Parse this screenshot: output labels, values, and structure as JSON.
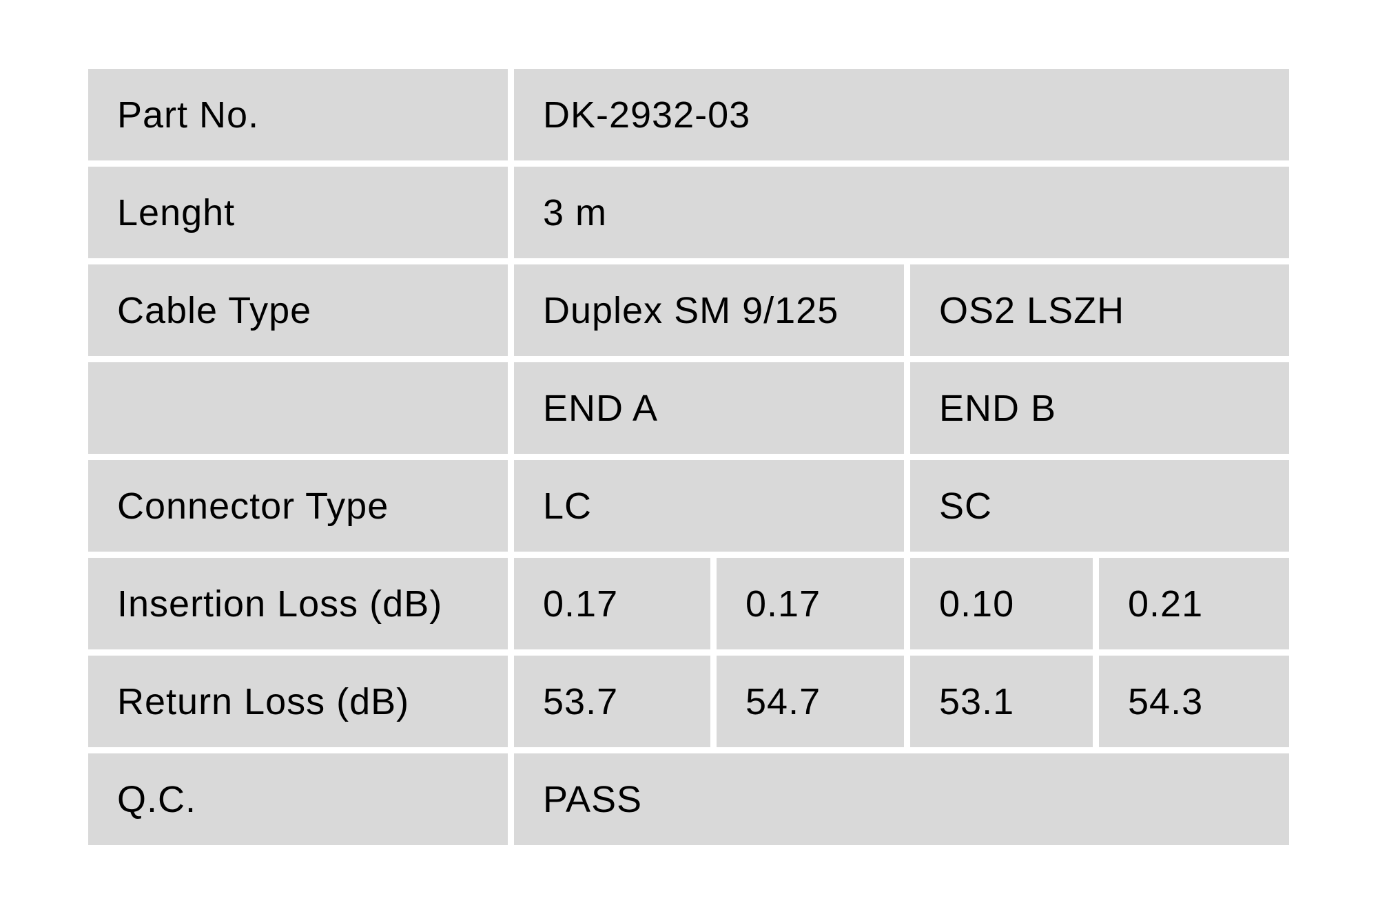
{
  "page": {
    "background_color": "#ffffff"
  },
  "table": {
    "cell_bg": "#d9d9d9",
    "text_color": "#000000",
    "rows": [
      {
        "key": "part-no",
        "label": "Part No.",
        "cells": [
          {
            "text": "DK-2932-03",
            "cols": 4
          }
        ]
      },
      {
        "key": "length",
        "label": "Lenght",
        "cells": [
          {
            "text": "3 m",
            "cols": 4
          }
        ]
      },
      {
        "key": "cable-type",
        "label": "Cable Type",
        "cells": [
          {
            "text": "Duplex SM 9/125",
            "cols": 2
          },
          {
            "text": "OS2 LSZH",
            "cols": 2
          }
        ]
      },
      {
        "key": "end-header",
        "label": "",
        "cells": [
          {
            "text": "END A",
            "cols": 2
          },
          {
            "text": "END B",
            "cols": 2
          }
        ]
      },
      {
        "key": "connector-type",
        "label": "Connector Type",
        "cells": [
          {
            "text": "LC",
            "cols": 2
          },
          {
            "text": "SC",
            "cols": 2
          }
        ]
      },
      {
        "key": "insertion-loss",
        "label": "Insertion Loss (dB)",
        "cells": [
          {
            "text": "0.17",
            "cols": 1
          },
          {
            "text": "0.17",
            "cols": 1
          },
          {
            "text": "0.10",
            "cols": 1
          },
          {
            "text": "0.21",
            "cols": 1
          }
        ]
      },
      {
        "key": "return-loss",
        "label": "Return Loss (dB)",
        "cells": [
          {
            "text": "53.7",
            "cols": 1
          },
          {
            "text": "54.7",
            "cols": 1
          },
          {
            "text": "53.1",
            "cols": 1
          },
          {
            "text": "54.3",
            "cols": 1
          }
        ]
      },
      {
        "key": "qc",
        "label": "Q.C.",
        "cells": [
          {
            "text": "PASS",
            "cols": 4
          }
        ]
      }
    ]
  }
}
